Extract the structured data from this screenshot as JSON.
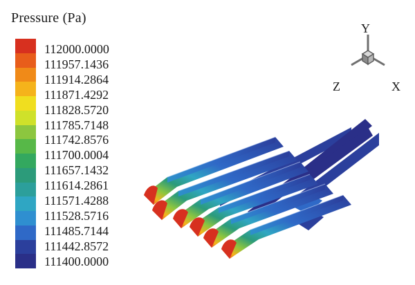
{
  "legend": {
    "title": "Pressure (Pa)",
    "labels": [
      "112000.0000",
      "111957.1436",
      "111914.2864",
      "111871.4292",
      "111828.5720",
      "111785.7148",
      "111742.8576",
      "111700.0004",
      "111657.1432",
      "111614.2861",
      "111571.4288",
      "111528.5716",
      "111485.7144",
      "111442.8572",
      "111400.0000"
    ],
    "colors": [
      "#d7301f",
      "#e85d1b",
      "#f08a18",
      "#f5b31b",
      "#f0de1f",
      "#cfe12a",
      "#8cc63f",
      "#57b848",
      "#33a85f",
      "#2c9b7a",
      "#2c9f9b",
      "#2fa6c3",
      "#2f8fd0",
      "#2f69c7",
      "#2b3f9c",
      "#2a2f88"
    ]
  },
  "axes": {
    "x": "X",
    "y": "Y",
    "z": "Z"
  }
}
